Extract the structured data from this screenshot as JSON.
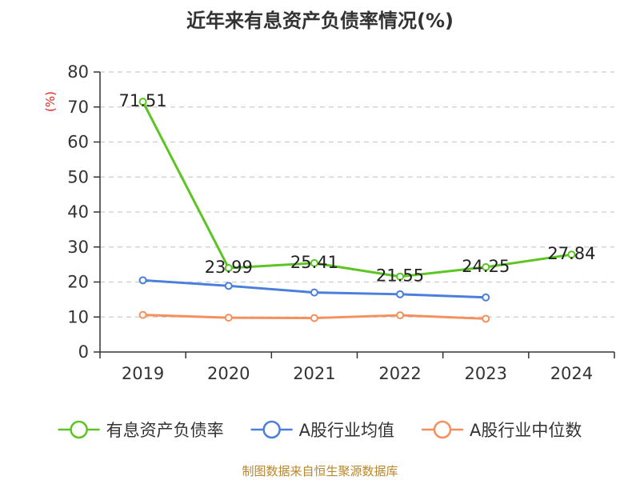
{
  "chart_data": {
    "type": "line",
    "title": "近年来有息资产负债率情况(%)",
    "ylabel": "(%)",
    "xlabel": "",
    "ylim": [
      0,
      80
    ],
    "yticks": [
      0,
      10,
      20,
      30,
      40,
      50,
      60,
      70,
      80
    ],
    "categories": [
      "2019",
      "2020",
      "2021",
      "2022",
      "2023",
      "2024"
    ],
    "grid": true,
    "legend_position": "bottom",
    "series": [
      {
        "name": "有息资产负债率",
        "color": "#5cc524",
        "values": [
          71.51,
          23.99,
          25.41,
          21.55,
          24.25,
          27.84
        ],
        "labels": true
      },
      {
        "name": "A股行业均值",
        "color": "#4a7fdb",
        "values": [
          20.5,
          18.9,
          17.0,
          16.5,
          15.6,
          null
        ],
        "labels": false
      },
      {
        "name": "A股行业中位数",
        "color": "#f5905c",
        "values": [
          10.6,
          9.8,
          9.7,
          10.5,
          9.5,
          null
        ],
        "labels": false
      }
    ]
  },
  "footer": "制图数据来自恒生聚源数据库"
}
